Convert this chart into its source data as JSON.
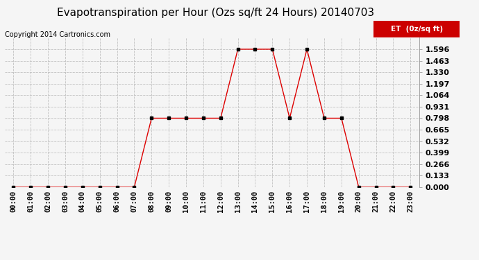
{
  "title": "Evapotranspiration per Hour (Ozs sq/ft 24 Hours) 20140703",
  "copyright": "Copyright 2014 Cartronics.com",
  "legend_label": "ET  (0z/sq ft)",
  "hours": [
    "00:00",
    "01:00",
    "02:00",
    "03:00",
    "04:00",
    "05:00",
    "06:00",
    "07:00",
    "08:00",
    "09:00",
    "10:00",
    "11:00",
    "12:00",
    "13:00",
    "14:00",
    "15:00",
    "16:00",
    "17:00",
    "18:00",
    "19:00",
    "20:00",
    "21:00",
    "22:00",
    "23:00"
  ],
  "values": [
    0.0,
    0.0,
    0.0,
    0.0,
    0.0,
    0.0,
    0.0,
    0.0,
    0.798,
    0.798,
    0.798,
    0.798,
    0.798,
    1.596,
    1.596,
    1.596,
    0.798,
    1.596,
    0.798,
    0.798,
    0.0,
    0.0,
    0.0,
    0.0
  ],
  "line_color": "#dd0000",
  "marker_color": "#000000",
  "background_color": "#f5f5f5",
  "grid_color": "#bbbbbb",
  "ylim_min": 0.0,
  "ylim_max": 1.729,
  "yticks": [
    0.0,
    0.133,
    0.266,
    0.399,
    0.532,
    0.665,
    0.798,
    0.931,
    1.064,
    1.197,
    1.33,
    1.463,
    1.596
  ],
  "title_fontsize": 11,
  "copyright_fontsize": 7,
  "legend_bg": "#cc0000",
  "legend_text_color": "#ffffff",
  "tick_fontsize": 7.5,
  "ytick_fontsize": 8
}
